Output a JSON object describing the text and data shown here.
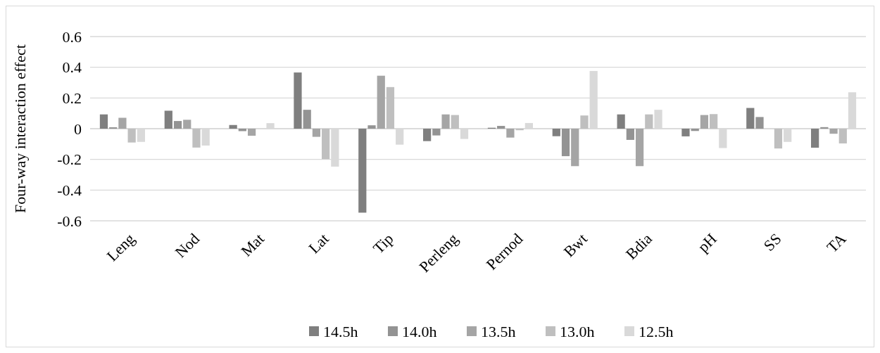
{
  "chart_data": {
    "type": "bar",
    "ylabel": "Four-way interaction effect",
    "categories": [
      "Leng",
      "Nod",
      "Mat",
      "Lat",
      "Tip",
      "Perleng",
      "Pernod",
      "Bwt",
      "Bdia",
      "pH",
      "SS",
      "TA"
    ],
    "series": [
      {
        "name": "14.5h",
        "color": "#7f7f7f",
        "values": [
          0.093,
          0.117,
          0.024,
          0.366,
          -0.547,
          -0.081,
          0.006,
          -0.049,
          0.093,
          -0.05,
          0.135,
          -0.124
        ]
      },
      {
        "name": "14.0h",
        "color": "#939393",
        "values": [
          0.009,
          0.05,
          -0.016,
          0.123,
          0.022,
          -0.044,
          0.018,
          -0.179,
          -0.073,
          -0.015,
          0.076,
          0.01
        ]
      },
      {
        "name": "13.5h",
        "color": "#a5a5a5",
        "values": [
          0.071,
          0.058,
          -0.046,
          -0.053,
          0.345,
          0.093,
          -0.058,
          -0.244,
          -0.244,
          0.089,
          0,
          -0.033
        ]
      },
      {
        "name": "13.0h",
        "color": "#bfbfbf",
        "values": [
          -0.09,
          -0.123,
          0,
          -0.198,
          0.271,
          0.089,
          -0.01,
          0.086,
          0.093,
          0.095,
          -0.129,
          -0.096
        ]
      },
      {
        "name": "12.5h",
        "color": "#d9d9d9",
        "values": [
          -0.086,
          -0.11,
          0.036,
          -0.247,
          -0.104,
          -0.067,
          0.037,
          0.376,
          0.123,
          -0.126,
          -0.086,
          0.237
        ]
      }
    ],
    "ylim": [
      -0.6,
      0.6
    ],
    "yticks": [
      -0.6,
      -0.4,
      -0.2,
      0,
      0.2,
      0.4,
      0.6
    ],
    "grid": "y",
    "legend": "bottom"
  }
}
